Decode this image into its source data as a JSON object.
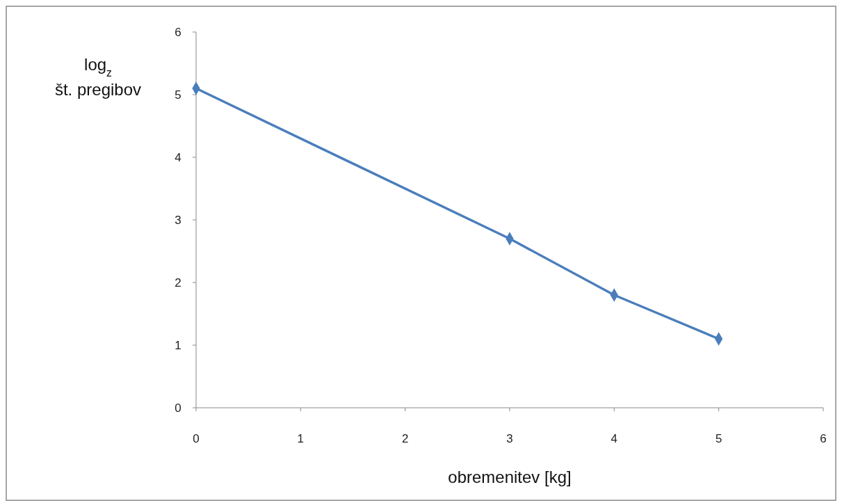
{
  "chart_data": {
    "type": "line",
    "xlabel": "obremenitev [kg]",
    "ylabel": "log$_{z}$\nšt. pregibov",
    "x": [
      0,
      3,
      4,
      5
    ],
    "series": [
      {
        "color": "#4a7ebb",
        "values": [
          5.1,
          2.7,
          1.8,
          1.1
        ]
      }
    ],
    "xlim": [
      0,
      6
    ],
    "xticks": [
      0,
      1,
      2,
      3,
      4,
      5,
      6
    ],
    "ylim": [
      0,
      6
    ],
    "yticks": [
      0,
      1,
      2,
      3,
      4,
      5,
      6
    ],
    "marker": "diamond",
    "line_style": "solid"
  }
}
